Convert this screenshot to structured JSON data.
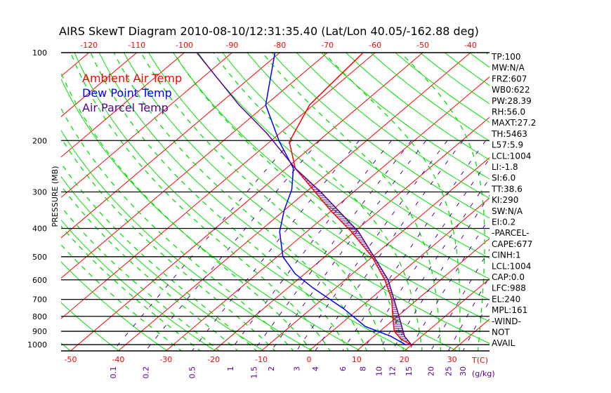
{
  "chart_data": {
    "type": "line",
    "title": "AIRS SkewT Diagram 2010-08-10/12:31:35.40 (Lat/Lon 40.05/-162.88 deg)",
    "ylabel": "PRESSURE (MB)",
    "xlabel": "T(C)",
    "mixing_ratio_unit": "(g/kg)",
    "pressure_ticks": [
      100,
      200,
      300,
      400,
      500,
      600,
      700,
      800,
      900,
      1000
    ],
    "bottom_temp_ticks": [
      -50,
      -40,
      -30,
      -20,
      -10,
      0,
      10,
      20,
      30
    ],
    "top_temp_ticks": [
      -120,
      -110,
      -100,
      -90,
      -80,
      -70,
      -60,
      -50,
      -40
    ],
    "mixing_ratio_ticks": [
      0.1,
      0.2,
      0.5,
      1,
      1.5,
      2,
      3,
      4,
      6,
      8,
      10,
      12,
      15,
      20,
      25,
      30
    ],
    "ylim": [
      1050,
      100
    ],
    "legend": [
      {
        "name": "Ambient Air Temp",
        "color": "#ff0000"
      },
      {
        "name": "Dew Point Temp",
        "color": "#0000ff"
      },
      {
        "name": "Air Parcel Temp",
        "color": "#5a0096"
      }
    ],
    "series": [
      {
        "name": "Ambient Air Temp",
        "color": "#ff0000",
        "pressure": [
          100,
          151,
          202,
          249,
          347,
          410,
          500,
          600,
          700,
          800,
          900,
          960,
          1004
        ],
        "temperature": [
          -62.5,
          -60.8,
          -55.9,
          -48.1,
          -30.3,
          -20.7,
          -10.1,
          -1.7,
          4.6,
          9.0,
          13.0,
          16.5,
          20.1
        ]
      },
      {
        "name": "Dew Point Temp",
        "color": "#0000ff",
        "pressure": [
          100,
          151,
          202,
          249,
          294,
          347,
          410,
          500,
          572,
          638,
          754,
          866,
          936,
          1004
        ],
        "temperature": [
          -81,
          -70,
          -58,
          -48.5,
          -43.6,
          -40,
          -35.7,
          -28.8,
          -22,
          -14.9,
          -3.1,
          5.7,
          13.5,
          19.0
        ]
      },
      {
        "name": "Air Parcel Temp",
        "color": "#5a0096",
        "pressure": [
          100,
          151,
          189,
          249,
          300,
          410,
          500,
          600,
          754,
          936,
          1004
        ],
        "temperature": [
          -97.4,
          -75.6,
          -62.7,
          -48.1,
          -36.9,
          -19.2,
          -9.7,
          -1.0,
          8.0,
          16.4,
          20.1
        ]
      }
    ],
    "grid": true
  },
  "indices": [
    "TP:100",
    "MW:N/A",
    "FRZ:607",
    "WB0:622",
    "PW:28.39",
    "RH:56.0",
    "MAXT:27.2",
    "TH:5463",
    "L57:5.9",
    "LCL:1004",
    "LI:-1.8",
    "SI:6.0",
    "TT:38.6",
    "KI:290",
    "SW:N/A",
    "EI:0.2",
    "-PARCEL-",
    "CAPE:677",
    "CINH:1",
    "LCL:1004",
    "CAP:0.0",
    "LFC:988",
    "EL:240",
    "MPL:161",
    "-WIND-",
    "NOT",
    "AVAIL"
  ],
  "colors": {
    "isotherm": "#ff0000",
    "dry_adiabat": "#00e000",
    "moist_adiabat": "#00e000",
    "mixing_ratio": "#5a0096",
    "isobar": "#000000"
  }
}
